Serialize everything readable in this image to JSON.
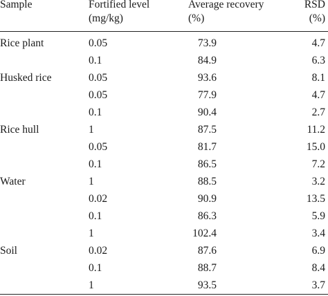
{
  "header": {
    "sample": "Sample",
    "level_line1": "Fortified level",
    "level_line2": "(mg/kg)",
    "recovery_line1": "Average recovery",
    "recovery_line2": "(%)",
    "rsd_line1": "RSD",
    "rsd_line2": "(%)"
  },
  "rows": [
    {
      "sample": "Rice plant",
      "level": "0.05",
      "recovery": "73.9",
      "rsd": "4.7"
    },
    {
      "sample": "",
      "level": "0.1",
      "recovery": "84.9",
      "rsd": "6.3"
    },
    {
      "sample": "Husked rice",
      "level": "0.05",
      "recovery": "93.6",
      "rsd": "8.1"
    },
    {
      "sample": "",
      "level": "0.05",
      "recovery": "77.9",
      "rsd": "4.7"
    },
    {
      "sample": "",
      "level": "0.1",
      "recovery": "90.4",
      "rsd": "2.7"
    },
    {
      "sample": "Rice hull",
      "level": "1",
      "recovery": "87.5",
      "rsd": "11.2"
    },
    {
      "sample": "",
      "level": "0.05",
      "recovery": "81.7",
      "rsd": "15.0"
    },
    {
      "sample": "",
      "level": "0.1",
      "recovery": "86.5",
      "rsd": "7.2"
    },
    {
      "sample": "Water",
      "level": "1",
      "recovery": "88.5",
      "rsd": "3.2"
    },
    {
      "sample": "",
      "level": "0.02",
      "recovery": "90.9",
      "rsd": "13.5"
    },
    {
      "sample": "",
      "level": "0.1",
      "recovery": "86.3",
      "rsd": "5.9"
    },
    {
      "sample": "",
      "level": "1",
      "recovery": "102.4",
      "rsd": "3.4"
    },
    {
      "sample": "Soil",
      "level": "0.02",
      "recovery": "87.6",
      "rsd": "6.9"
    },
    {
      "sample": "",
      "level": "0.1",
      "recovery": "88.7",
      "rsd": "8.4"
    },
    {
      "sample": "",
      "level": "1",
      "recovery": "93.5",
      "rsd": "3.7"
    }
  ]
}
